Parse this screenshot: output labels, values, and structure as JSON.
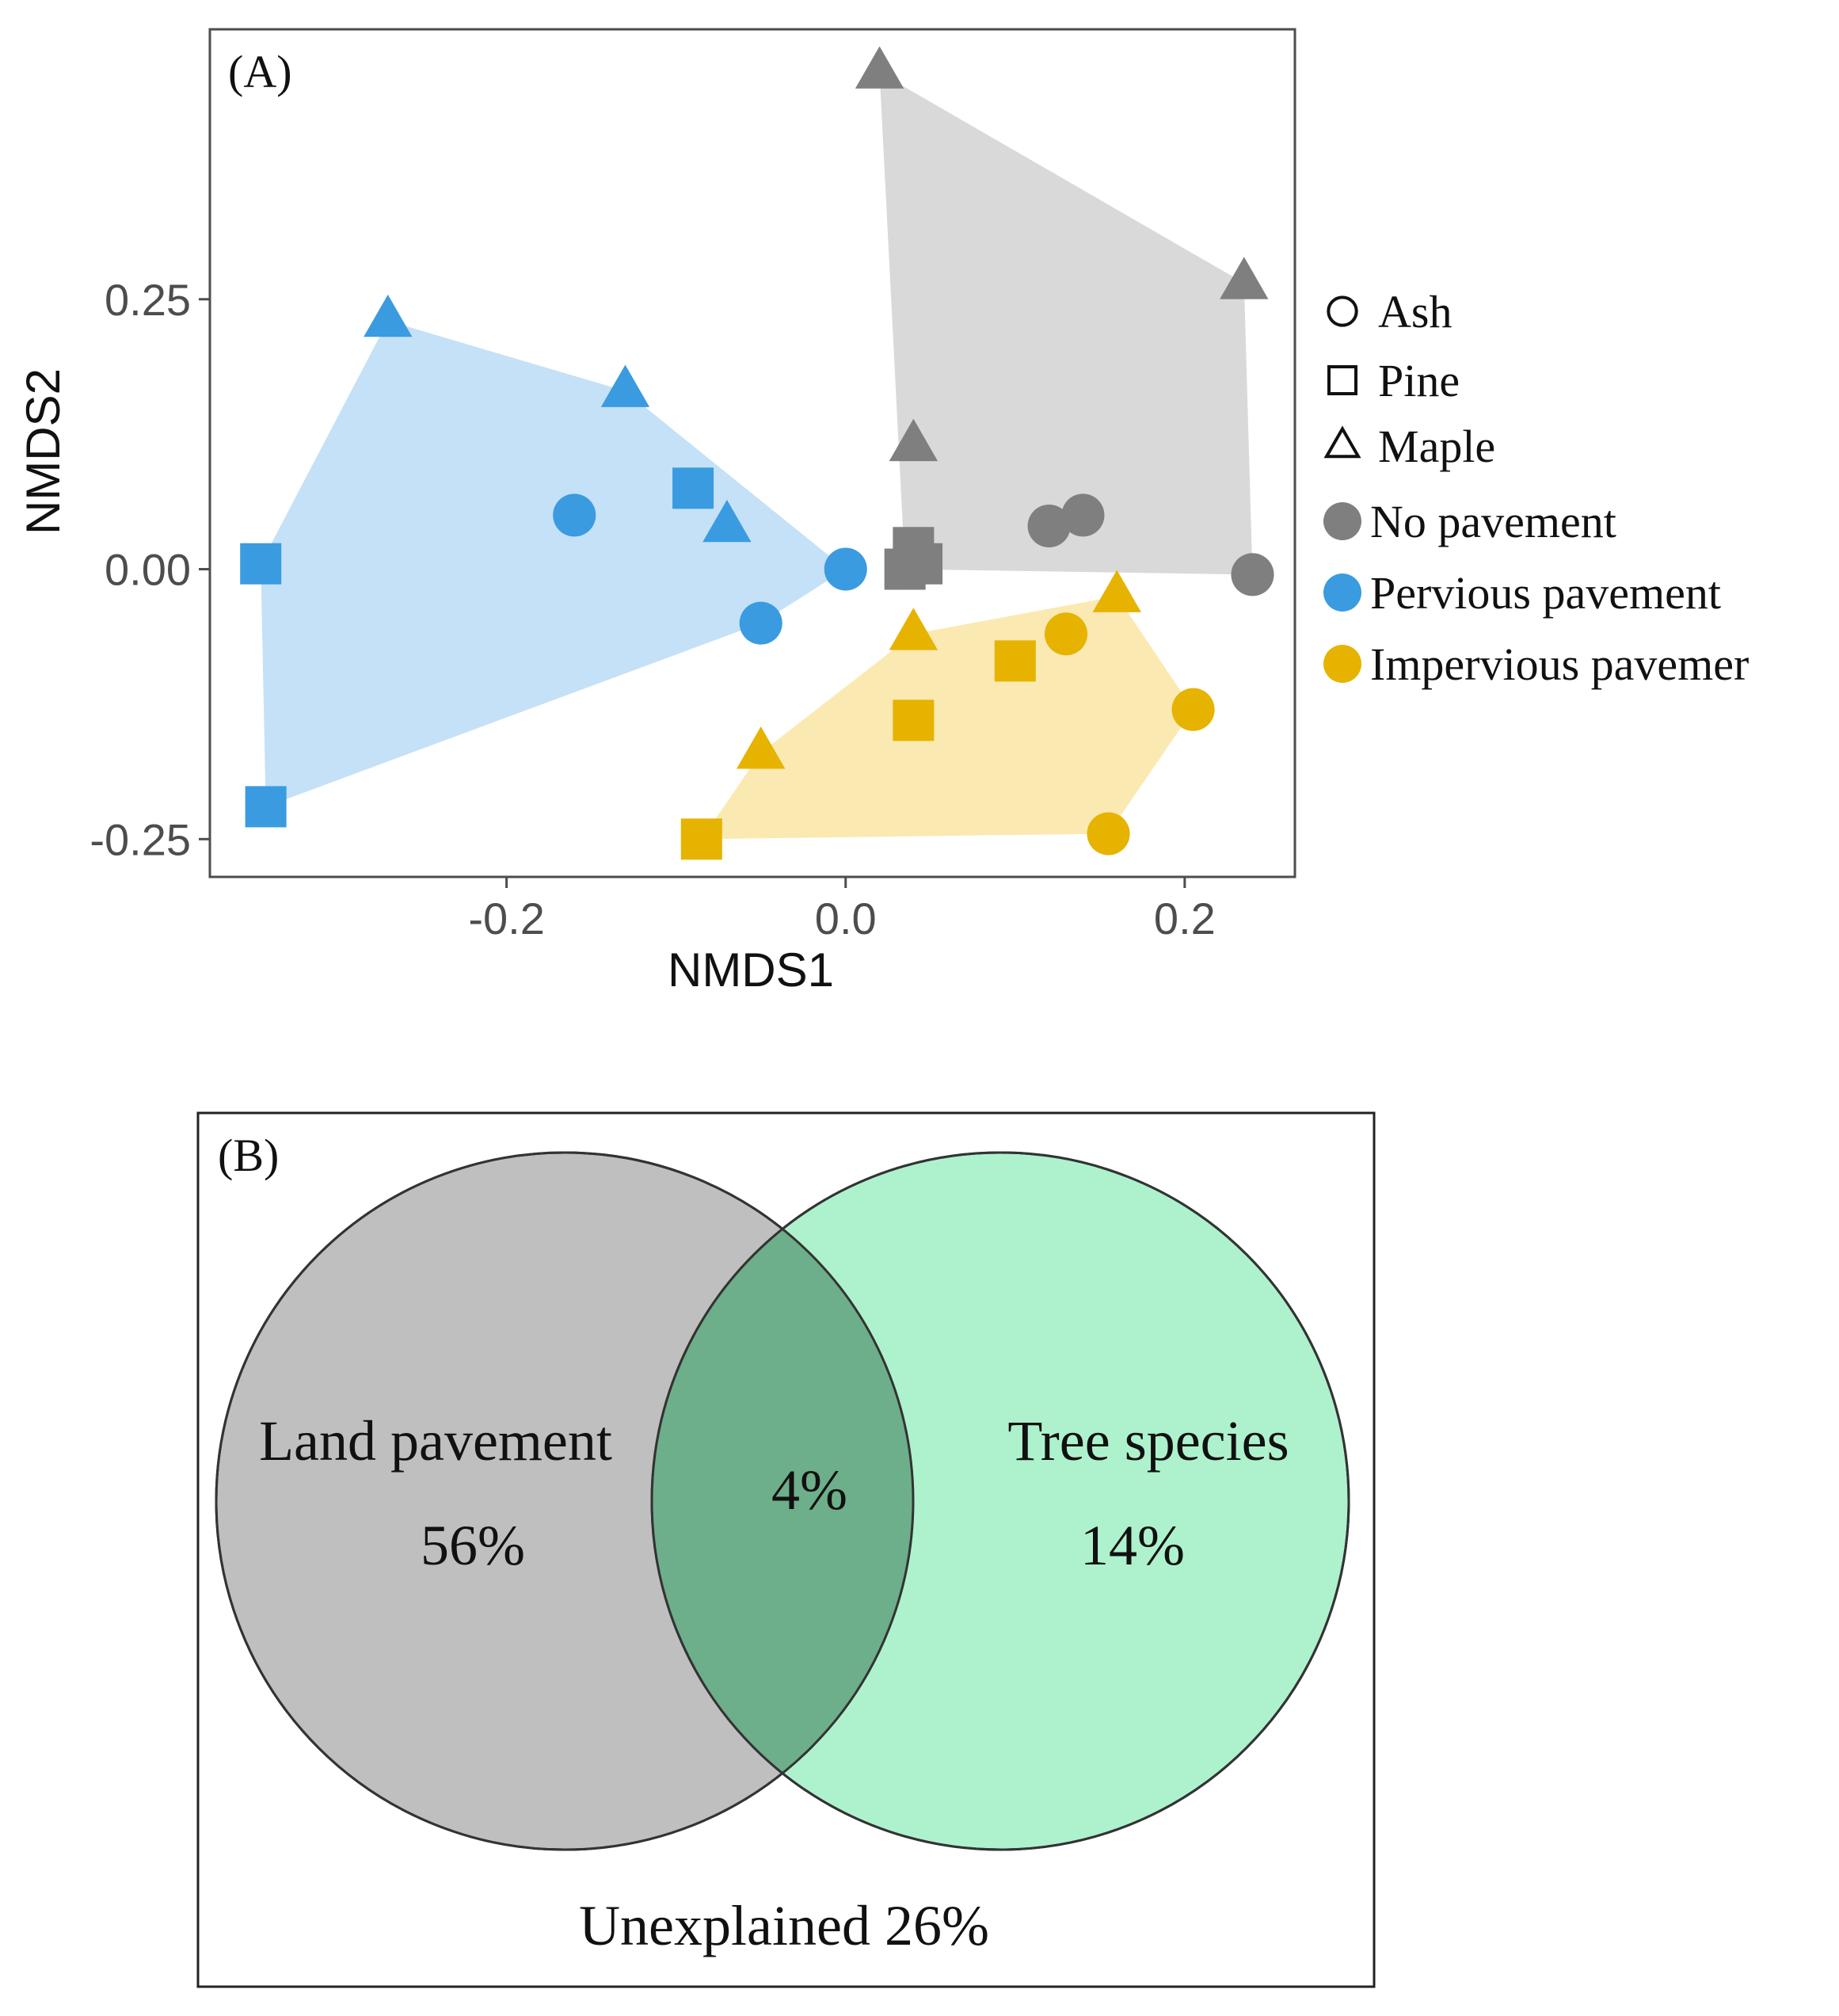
{
  "chart_data": [
    {
      "type": "scatter",
      "panel_label": "(A)",
      "title": "",
      "xlabel": "NMDS1",
      "ylabel": "NMDS2",
      "xlim": [
        -0.375,
        0.265
      ],
      "ylim": [
        -0.285,
        0.5
      ],
      "x_ticks": [
        -0.2,
        0.0,
        0.2
      ],
      "x_tick_labels": [
        "-0.2",
        "0.0",
        "0.2"
      ],
      "y_ticks": [
        0.25,
        0.0,
        -0.25
      ],
      "y_tick_labels": [
        "0.25",
        "0.00",
        "-0.25"
      ],
      "grid": false,
      "legend_position": "right",
      "shape_legend": [
        {
          "label": "Ash",
          "shape": "circle"
        },
        {
          "label": "Pine",
          "shape": "square"
        },
        {
          "label": "Maple",
          "shape": "triangle"
        }
      ],
      "color_legend": [
        {
          "label": "No pavement",
          "color": "#7f7f7f"
        },
        {
          "label": "Pervious pavement",
          "color": "#3a9be0"
        },
        {
          "label": "Impervious pavemer",
          "color": "#e6b300"
        }
      ],
      "hull_colors": {
        "No pavement": "#d9d9d9",
        "Pervious pavement": "#c5e1f7",
        "Impervious pavemer": "#fbe9b2"
      },
      "series": [
        {
          "name": "No pavement",
          "color": "#7f7f7f",
          "points": [
            {
              "x": 0.02,
              "y": 0.46,
              "shape": "triangle"
            },
            {
              "x": 0.235,
              "y": 0.265,
              "shape": "triangle"
            },
            {
              "x": 0.04,
              "y": 0.115,
              "shape": "triangle"
            },
            {
              "x": 0.12,
              "y": 0.04,
              "shape": "circle"
            },
            {
              "x": 0.14,
              "y": 0.05,
              "shape": "circle"
            },
            {
              "x": 0.24,
              "y": -0.005,
              "shape": "circle"
            },
            {
              "x": 0.04,
              "y": 0.02,
              "shape": "square"
            },
            {
              "x": 0.035,
              "y": 0.0,
              "shape": "square"
            },
            {
              "x": 0.045,
              "y": 0.005,
              "shape": "square"
            }
          ]
        },
        {
          "name": "Pervious pavement",
          "color": "#3a9be0",
          "points": [
            {
              "x": -0.27,
              "y": 0.23,
              "shape": "triangle"
            },
            {
              "x": -0.13,
              "y": 0.165,
              "shape": "triangle"
            },
            {
              "x": -0.07,
              "y": 0.04,
              "shape": "triangle"
            },
            {
              "x": -0.09,
              "y": 0.075,
              "shape": "square"
            },
            {
              "x": -0.345,
              "y": 0.005,
              "shape": "square"
            },
            {
              "x": -0.342,
              "y": -0.22,
              "shape": "square"
            },
            {
              "x": -0.16,
              "y": 0.05,
              "shape": "circle"
            },
            {
              "x": 0.0,
              "y": 0.0,
              "shape": "circle"
            },
            {
              "x": -0.05,
              "y": -0.05,
              "shape": "circle"
            }
          ]
        },
        {
          "name": "Impervious pavemer",
          "color": "#e6b300",
          "points": [
            {
              "x": 0.16,
              "y": -0.025,
              "shape": "triangle"
            },
            {
              "x": 0.04,
              "y": -0.06,
              "shape": "triangle"
            },
            {
              "x": -0.05,
              "y": -0.17,
              "shape": "triangle"
            },
            {
              "x": 0.1,
              "y": -0.085,
              "shape": "square"
            },
            {
              "x": 0.04,
              "y": -0.14,
              "shape": "square"
            },
            {
              "x": -0.085,
              "y": -0.25,
              "shape": "square"
            },
            {
              "x": 0.13,
              "y": -0.06,
              "shape": "circle"
            },
            {
              "x": 0.205,
              "y": -0.13,
              "shape": "circle"
            },
            {
              "x": 0.155,
              "y": -0.245,
              "shape": "circle"
            }
          ]
        }
      ]
    },
    {
      "type": "venn",
      "panel_label": "(B)",
      "sets": [
        {
          "name": "Land pavement",
          "value": "56%",
          "color": "#bfbfbf"
        },
        {
          "name": "Tree species",
          "value": "14%",
          "color": "#aef2cd"
        }
      ],
      "intersection": {
        "value": "4%",
        "color": "#6daf8a"
      },
      "unexplained": "Unexplained 26%"
    }
  ]
}
